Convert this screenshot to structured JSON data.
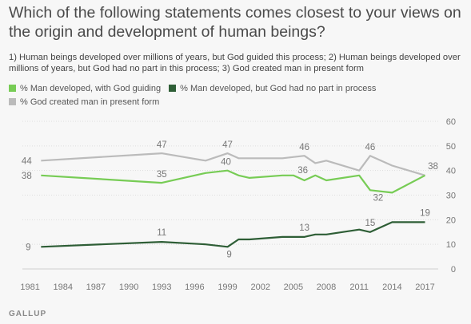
{
  "title": "Which of the following statements comes closest to your views on the origin and development of human beings?",
  "subtitle": "1) Human beings developed over millions of years, but God guided this process; 2) Human beings developed over millions of years, but God had no part in this process; 3) God created man in present form",
  "source": "GALLUP",
  "legend": [
    {
      "label": "% Man developed, with God guiding",
      "color": "#77cc55",
      "icon": "square-swatch"
    },
    {
      "label": "% Man developed, but God had no part in process",
      "color": "#2e5e36",
      "icon": "square-swatch"
    },
    {
      "label": "% God created man in present form",
      "color": "#bbbbbb",
      "icon": "square-swatch"
    }
  ],
  "chart_data": {
    "type": "line",
    "title": "Which of the following statements comes closest to your views on the origin and development of human beings?",
    "xlabel": "",
    "ylabel": "",
    "xlim": [
      1980.3,
      2018.2
    ],
    "ylim": [
      0,
      60
    ],
    "x_ticks": [
      1981,
      1984,
      1987,
      1990,
      1993,
      1996,
      1999,
      2002,
      2005,
      2008,
      2011,
      2014,
      2017
    ],
    "y_ticks": [
      0,
      10,
      20,
      30,
      40,
      50,
      60
    ],
    "grid": "horizontal",
    "legend_position": "top-left",
    "series": [
      {
        "name": "% God created man in present form",
        "color": "#bbbbbb",
        "points": [
          [
            1982,
            44
          ],
          [
            1993,
            47
          ],
          [
            1997,
            44
          ],
          [
            1999,
            47
          ],
          [
            2000,
            45
          ],
          [
            2001,
            45
          ],
          [
            2004,
            45
          ],
          [
            2006,
            46
          ],
          [
            2007,
            43
          ],
          [
            2008,
            44
          ],
          [
            2011,
            40
          ],
          [
            2012,
            46
          ],
          [
            2014,
            42
          ],
          [
            2017,
            38
          ]
        ],
        "labels": [
          {
            "x": 1982,
            "y": 44,
            "text": "44"
          },
          {
            "x": 1993,
            "y": 47,
            "text": "47"
          },
          {
            "x": 1999,
            "y": 47,
            "text": "47"
          },
          {
            "x": 2006,
            "y": 46,
            "text": "46"
          },
          {
            "x": 2012,
            "y": 46,
            "text": "46"
          },
          {
            "x": 2017,
            "y": 38,
            "text": "38"
          }
        ]
      },
      {
        "name": "% Man developed, with God guiding",
        "color": "#77cc55",
        "points": [
          [
            1982,
            38
          ],
          [
            1993,
            35
          ],
          [
            1997,
            39
          ],
          [
            1999,
            40
          ],
          [
            2000,
            38
          ],
          [
            2001,
            37
          ],
          [
            2004,
            38
          ],
          [
            2005,
            38
          ],
          [
            2006,
            36
          ],
          [
            2007,
            38
          ],
          [
            2008,
            36
          ],
          [
            2011,
            38
          ],
          [
            2012,
            32
          ],
          [
            2014,
            31
          ],
          [
            2017,
            38
          ]
        ],
        "labels": [
          {
            "x": 1982,
            "y": 38,
            "text": "38"
          },
          {
            "x": 1993,
            "y": 35,
            "text": "35"
          },
          {
            "x": 1999,
            "y": 40,
            "text": "40"
          },
          {
            "x": 2006,
            "y": 36,
            "text": "36"
          },
          {
            "x": 2012,
            "y": 32,
            "text": "32"
          }
        ]
      },
      {
        "name": "% Man developed, but God had no part in process",
        "color": "#2e5e36",
        "points": [
          [
            1982,
            9
          ],
          [
            1993,
            11
          ],
          [
            1997,
            10
          ],
          [
            1999,
            9
          ],
          [
            2000,
            12
          ],
          [
            2001,
            12
          ],
          [
            2004,
            13
          ],
          [
            2005,
            13
          ],
          [
            2006,
            13
          ],
          [
            2007,
            14
          ],
          [
            2008,
            14
          ],
          [
            2011,
            16
          ],
          [
            2012,
            15
          ],
          [
            2014,
            19
          ],
          [
            2017,
            19
          ]
        ],
        "labels": [
          {
            "x": 1982,
            "y": 9,
            "text": "9"
          },
          {
            "x": 1993,
            "y": 11,
            "text": "11"
          },
          {
            "x": 1999,
            "y": 9,
            "text": "9"
          },
          {
            "x": 2006,
            "y": 13,
            "text": "13"
          },
          {
            "x": 2012,
            "y": 15,
            "text": "15"
          },
          {
            "x": 2017,
            "y": 19,
            "text": "19"
          }
        ]
      }
    ]
  }
}
